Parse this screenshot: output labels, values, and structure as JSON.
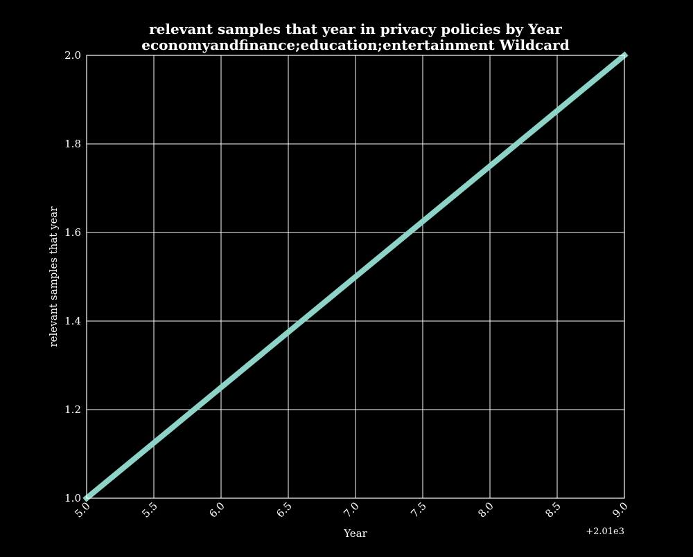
{
  "chart_data": {
    "type": "line",
    "title_line1": "relevant samples that year in privacy policies by Year",
    "title_line2": "economyandfinance;education;entertainment Wildcard",
    "xlabel": "Year",
    "ylabel": "relevant samples that year",
    "x_offset_label": "+2.01e3",
    "xlim": [
      5.0,
      9.0
    ],
    "ylim": [
      1.0,
      2.0
    ],
    "x_ticks": [
      "5.0",
      "5.5",
      "6.0",
      "6.5",
      "7.0",
      "7.5",
      "8.0",
      "8.5",
      "9.0"
    ],
    "y_ticks": [
      "1.0",
      "1.2",
      "1.4",
      "1.6",
      "1.8",
      "2.0"
    ],
    "grid": true,
    "series": [
      {
        "x": [
          5.0,
          9.0
        ],
        "y": [
          1.0,
          2.0
        ],
        "color": "#8dd3c7"
      }
    ],
    "colors": {
      "background": "#000000",
      "grid": "#ffffff",
      "text": "#ffffff",
      "line": "#8dd3c7"
    }
  }
}
